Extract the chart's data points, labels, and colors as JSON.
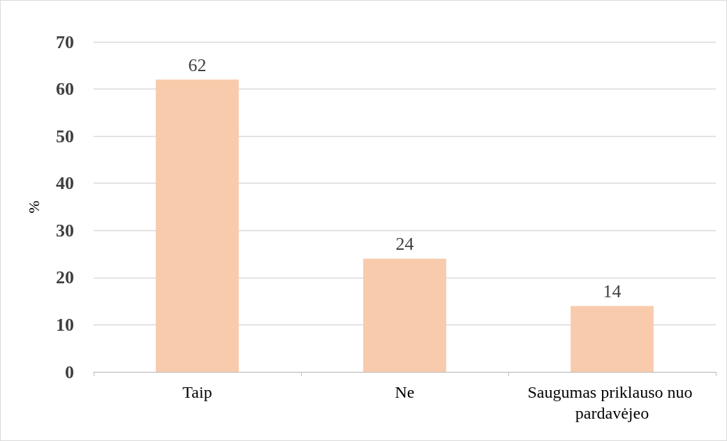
{
  "chart_data": {
    "type": "bar",
    "ylabel": "%",
    "categories": [
      "Taip",
      "Ne",
      "Saugumas priklauso nuo pardavėjeo"
    ],
    "values": [
      62,
      24,
      14
    ],
    "color": "#f8cbad",
    "ylim": [
      0,
      70
    ],
    "yticks": [
      0,
      10,
      20,
      30,
      40,
      50,
      60,
      70
    ],
    "grid": "y",
    "data_labels": true
  }
}
